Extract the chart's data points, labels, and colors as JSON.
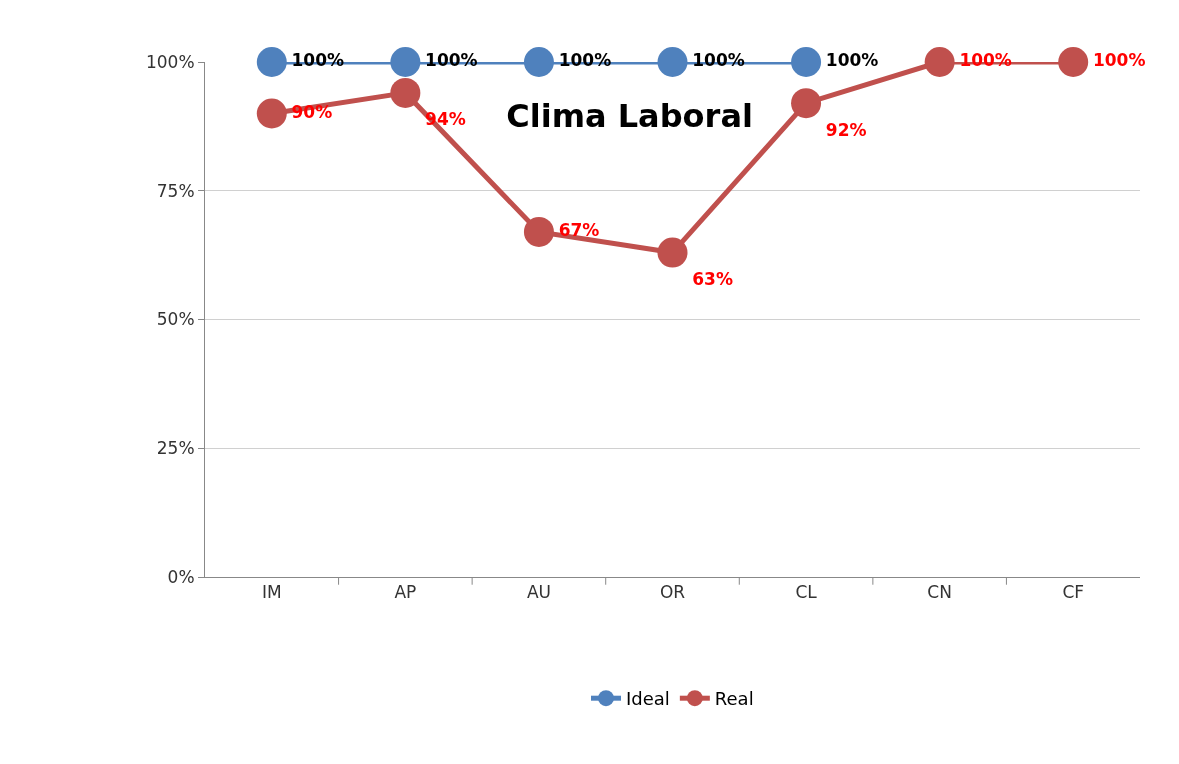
{
  "chart_data": {
    "type": "line",
    "title": "Clima Laboral",
    "categories": [
      "IM",
      "AP",
      "AU",
      "OR",
      "CL",
      "CN",
      "CF"
    ],
    "series": [
      {
        "name": "Ideal",
        "color": "#4f81bd",
        "values": [
          100,
          100,
          100,
          100,
          100,
          null,
          null
        ],
        "value_labels": [
          "100%",
          "100%",
          "100%",
          "100%",
          "100%",
          null,
          null
        ]
      },
      {
        "name": "Real",
        "color": "#c0504d",
        "values": [
          90,
          94,
          67,
          63,
          92,
          100,
          100
        ],
        "value_labels": [
          "90%",
          "94%",
          "67%",
          "63%",
          "92%",
          "100%",
          "100%"
        ]
      }
    ],
    "ylim": [
      0,
      100
    ],
    "yticks": [
      {
        "value": 0,
        "label": "0%"
      },
      {
        "value": 25,
        "label": "25%"
      },
      {
        "value": 50,
        "label": "50%"
      },
      {
        "value": 75,
        "label": "75%"
      },
      {
        "value": 100,
        "label": "100%"
      }
    ],
    "grid": "y",
    "legend": "bottom",
    "marker": "circle",
    "line_style": "solid"
  }
}
